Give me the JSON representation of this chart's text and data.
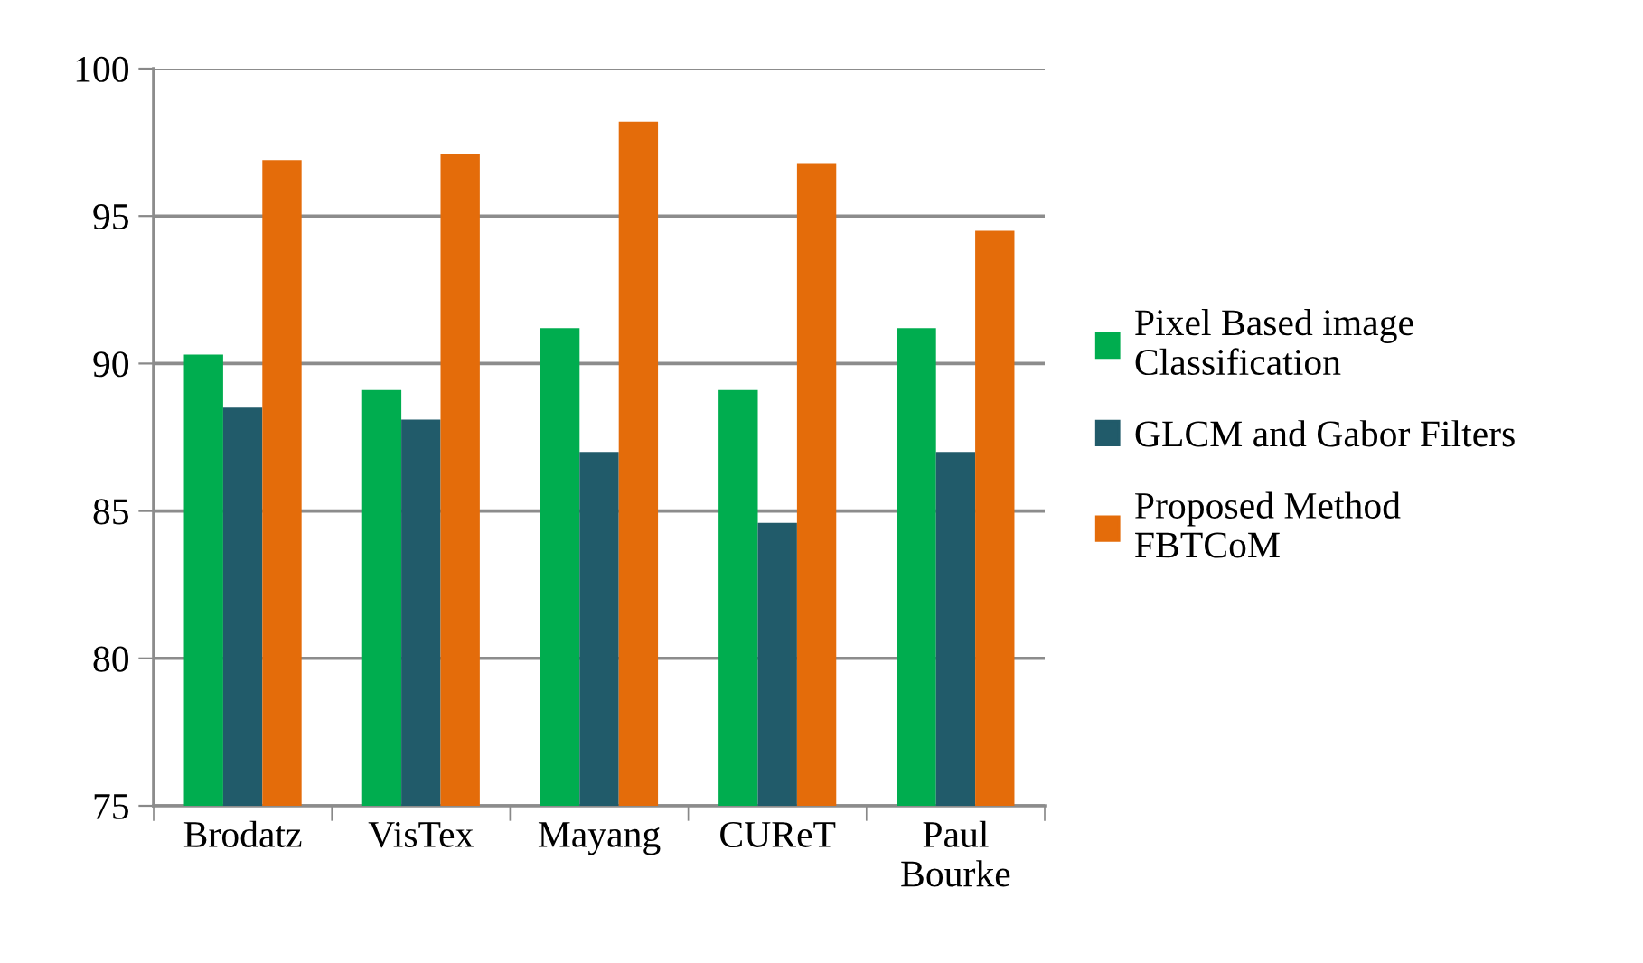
{
  "chart_data": {
    "type": "bar",
    "categories": [
      "Brodatz",
      "VisTex",
      "Mayang",
      "CUReT",
      "Paul\nBourke"
    ],
    "series": [
      {
        "name": "Pixel Based image\nClassification",
        "color": "#00ad4f",
        "values": [
          90.3,
          89.1,
          91.2,
          89.1,
          91.2
        ]
      },
      {
        "name": "GLCM and Gabor Filters",
        "color": "#215b6a",
        "values": [
          88.5,
          88.1,
          87.0,
          84.6,
          87.0
        ]
      },
      {
        "name": "Proposed Method\nFBTCoM",
        "color": "#e46c0a",
        "values": [
          96.9,
          97.1,
          98.2,
          96.8,
          94.5
        ]
      }
    ],
    "ylim": [
      75,
      100
    ],
    "yticks": [
      75,
      80,
      85,
      90,
      95,
      100
    ],
    "grid": "y",
    "legend": "right"
  }
}
